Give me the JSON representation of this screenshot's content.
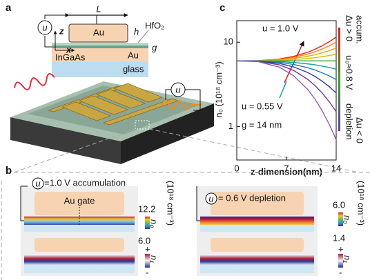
{
  "chart_data": {
    "type": "line",
    "panel_label": "c",
    "ylabel": "n₀ (10¹⁸ cm⁻³)",
    "xlabel": "z-dimension(nm)",
    "annotations": [
      "u = 1.0 V",
      "u = 0.55 V",
      "g = 14 nm"
    ],
    "side_labels": [
      "Δu > 0",
      "accum.",
      "u₀≈0.8 V",
      "depletion",
      "Δu < 0"
    ],
    "log_y": true,
    "xlim": [
      0,
      14
    ],
    "ylim": [
      0.4,
      18
    ],
    "xticks": [
      0,
      7,
      14
    ],
    "yticks": [
      1,
      10
    ],
    "x": [
      0,
      3,
      6,
      8,
      10,
      11,
      12,
      13,
      14
    ],
    "series": [
      {
        "color": "#e41a1c",
        "values": [
          6,
          6.04,
          6.31,
          6.78,
          7.6,
          8.23,
          9.04,
          10.1,
          11.5
        ]
      },
      {
        "color": "#ff7f00",
        "values": [
          6,
          6.03,
          6.25,
          6.6,
          7.23,
          7.69,
          8.28,
          9.04,
          10
        ]
      },
      {
        "color": "#f0a800",
        "values": [
          6,
          6.02,
          6.17,
          6.4,
          6.81,
          7.1,
          7.47,
          7.92,
          8.5
        ]
      },
      {
        "color": "#c8c800",
        "values": [
          6,
          6.01,
          6.09,
          6.21,
          6.41,
          6.55,
          6.73,
          6.94,
          7.2
        ]
      },
      {
        "color": "#33a02c",
        "values": [
          6,
          6,
          6,
          6,
          6,
          6,
          6,
          6,
          6
        ]
      },
      {
        "color": "#1a9e9e",
        "values": [
          6,
          5.99,
          5.89,
          5.75,
          5.53,
          5.39,
          5.21,
          5.02,
          4.8
        ]
      },
      {
        "color": "#1f78b4",
        "values": [
          6,
          5.97,
          5.76,
          5.45,
          4.98,
          4.68,
          4.34,
          3.99,
          3.6
        ]
      },
      {
        "color": "#2c3e9e",
        "values": [
          6,
          5.95,
          5.6,
          5.09,
          4.37,
          3.93,
          3.46,
          2.98,
          2.5
        ]
      },
      {
        "color": "#6a3d9a",
        "values": [
          6,
          5.92,
          5.38,
          4.63,
          3.62,
          3.06,
          2.51,
          1.98,
          1.5
        ]
      },
      {
        "color": "#9b59b6",
        "values": [
          6,
          5.88,
          5.06,
          4.01,
          2.74,
          2.12,
          1.55,
          1.07,
          0.7
        ]
      }
    ]
  },
  "panel_a": {
    "label": "a",
    "L": "L",
    "h": "h",
    "hfo2": "HfO₂",
    "u": "u",
    "z": "z",
    "x": "x",
    "g": "g",
    "au_top": "Au",
    "ingaas": "InGaAs",
    "au_bottom": "Au",
    "glass": "glass",
    "u_device": "u"
  },
  "panel_b": {
    "label": "b",
    "left": {
      "u": "u",
      "title": "=1.0 V accumulation",
      "gate": "Au gate",
      "max": "12.2",
      "unit": "(10¹⁸ cm⁻³)",
      "n0": "n₀",
      "n1_max": "6.0",
      "plus": "+",
      "n1": "n₁",
      "minus": "-"
    },
    "right": {
      "u": "u",
      "title": "= 0.6 V depletion",
      "max": "6.0",
      "unit": "(10¹⁸ cm⁻³)",
      "n0": "n₀",
      "min": "1.4",
      "plus": "+",
      "n1": "n₁",
      "minus": "-"
    }
  }
}
